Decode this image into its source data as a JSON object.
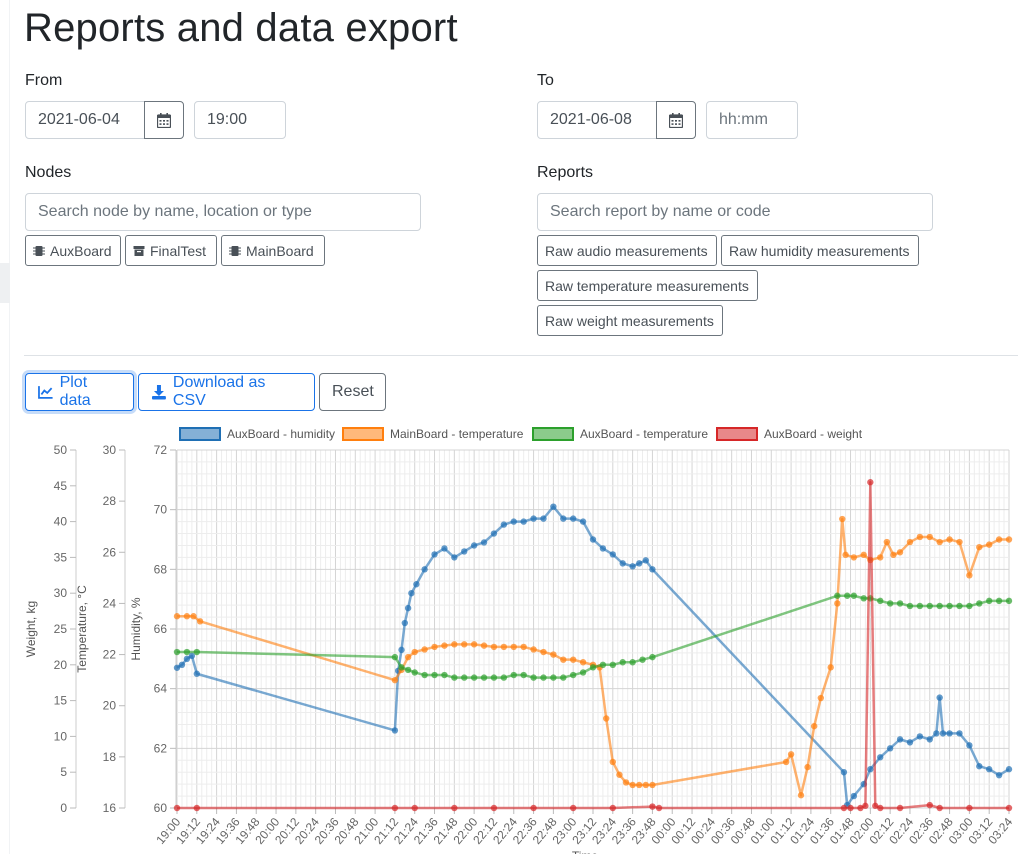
{
  "page": {
    "title": "Reports and data export"
  },
  "from": {
    "label": "From",
    "date": "2021-06-04",
    "time": "19:00"
  },
  "to": {
    "label": "To",
    "date": "2021-06-08",
    "time_placeholder": "hh:mm"
  },
  "nodes": {
    "label": "Nodes",
    "search_placeholder": "Search node by name, location or type",
    "chips": [
      {
        "label": "AuxBoard",
        "icon": "chip-icon"
      },
      {
        "label": "FinalTest",
        "icon": "archive-icon"
      },
      {
        "label": "MainBoard",
        "icon": "chip-icon"
      }
    ]
  },
  "reports": {
    "label": "Reports",
    "search_placeholder": "Search report by name or code",
    "chips": [
      "Raw audio measurements",
      "Raw humidity measurements",
      "Raw temperature measurements",
      "Raw weight measurements"
    ]
  },
  "actions": {
    "plot_label": "Plot data",
    "csv_label": "Download as CSV",
    "reset_label": "Reset"
  },
  "chart_data": {
    "type": "line",
    "xlabel": "Time",
    "x_ticks": [
      "19:00",
      "19:12",
      "19:24",
      "19:36",
      "19:48",
      "20:00",
      "20:12",
      "20:24",
      "20:36",
      "20:48",
      "21:00",
      "21:12",
      "21:24",
      "21:36",
      "21:48",
      "22:00",
      "22:12",
      "22:24",
      "22:36",
      "22:48",
      "23:00",
      "23:12",
      "23:24",
      "23:36",
      "23:48",
      "00:00",
      "00:12",
      "00:24",
      "00:36",
      "00:48",
      "01:00",
      "01:12",
      "01:24",
      "01:36",
      "01:48",
      "02:00",
      "02:12",
      "02:24",
      "02:36",
      "02:48",
      "03:00",
      "03:12",
      "03:24"
    ],
    "axes": [
      {
        "id": "weight",
        "label": "Weight, kg",
        "min": 0,
        "max": 50,
        "ticks": [
          0,
          5,
          10,
          15,
          20,
          25,
          30,
          35,
          40,
          45,
          50
        ]
      },
      {
        "id": "temperature",
        "label": "Temperature, °C",
        "min": 16,
        "max": 30,
        "ticks": [
          16,
          18,
          20,
          22,
          24,
          26,
          28,
          30
        ]
      },
      {
        "id": "humidity",
        "label": "Humidity, %",
        "min": 60,
        "max": 72,
        "ticks": [
          60,
          62,
          64,
          66,
          68,
          70,
          72
        ]
      }
    ],
    "grid": true,
    "legend_position": "top",
    "series": [
      {
        "name": "AuxBoard - humidity",
        "axis": "humidity",
        "color": "#1f6fb4",
        "points": [
          [
            "19:00",
            64.7
          ],
          [
            "19:03",
            64.8
          ],
          [
            "19:06",
            65.0
          ],
          [
            "19:09",
            65.1
          ],
          [
            "19:12",
            64.5
          ],
          [
            "21:12",
            62.6
          ],
          [
            "21:14",
            64.6
          ],
          [
            "21:16",
            65.3
          ],
          [
            "21:18",
            66.2
          ],
          [
            "21:20",
            66.7
          ],
          [
            "21:22",
            67.2
          ],
          [
            "21:25",
            67.5
          ],
          [
            "21:30",
            68.0
          ],
          [
            "21:36",
            68.5
          ],
          [
            "21:42",
            68.7
          ],
          [
            "21:48",
            68.4
          ],
          [
            "21:54",
            68.6
          ],
          [
            "22:00",
            68.8
          ],
          [
            "22:06",
            68.9
          ],
          [
            "22:12",
            69.2
          ],
          [
            "22:18",
            69.5
          ],
          [
            "22:24",
            69.6
          ],
          [
            "22:30",
            69.6
          ],
          [
            "22:36",
            69.7
          ],
          [
            "22:42",
            69.7
          ],
          [
            "22:48",
            70.1
          ],
          [
            "22:54",
            69.7
          ],
          [
            "23:00",
            69.7
          ],
          [
            "23:06",
            69.6
          ],
          [
            "23:12",
            69.0
          ],
          [
            "23:18",
            68.7
          ],
          [
            "23:24",
            68.5
          ],
          [
            "23:30",
            68.2
          ],
          [
            "23:36",
            68.1
          ],
          [
            "23:40",
            68.2
          ],
          [
            "23:44",
            68.3
          ],
          [
            "23:48",
            68.0
          ],
          [
            "01:44",
            61.2
          ],
          [
            "01:46",
            60.1
          ],
          [
            "01:50",
            60.4
          ],
          [
            "01:56",
            60.8
          ],
          [
            "02:00",
            61.3
          ],
          [
            "02:06",
            61.7
          ],
          [
            "02:12",
            62.0
          ],
          [
            "02:18",
            62.3
          ],
          [
            "02:24",
            62.2
          ],
          [
            "02:30",
            62.4
          ],
          [
            "02:36",
            62.3
          ],
          [
            "02:40",
            62.5
          ],
          [
            "02:42",
            63.7
          ],
          [
            "02:44",
            62.5
          ],
          [
            "02:48",
            62.5
          ],
          [
            "02:54",
            62.5
          ],
          [
            "03:00",
            62.1
          ],
          [
            "03:06",
            61.4
          ],
          [
            "03:12",
            61.3
          ],
          [
            "03:18",
            61.1
          ],
          [
            "03:24",
            61.3
          ]
        ]
      },
      {
        "name": "MainBoard - temperature",
        "axis": "temperature",
        "color": "#ff7f0e",
        "points": [
          [
            "19:00",
            23.5
          ],
          [
            "19:06",
            23.5
          ],
          [
            "19:10",
            23.5
          ],
          [
            "19:14",
            23.3
          ],
          [
            "21:12",
            21.0
          ],
          [
            "21:16",
            21.4
          ],
          [
            "21:20",
            21.9
          ],
          [
            "21:24",
            22.1
          ],
          [
            "21:30",
            22.2
          ],
          [
            "21:36",
            22.3
          ],
          [
            "21:42",
            22.35
          ],
          [
            "21:48",
            22.4
          ],
          [
            "21:54",
            22.4
          ],
          [
            "22:00",
            22.4
          ],
          [
            "22:06",
            22.35
          ],
          [
            "22:12",
            22.3
          ],
          [
            "22:18",
            22.3
          ],
          [
            "22:24",
            22.3
          ],
          [
            "22:30",
            22.3
          ],
          [
            "22:36",
            22.2
          ],
          [
            "22:42",
            22.1
          ],
          [
            "22:48",
            22.0
          ],
          [
            "22:54",
            21.8
          ],
          [
            "23:00",
            21.8
          ],
          [
            "23:06",
            21.7
          ],
          [
            "23:12",
            21.6
          ],
          [
            "23:16",
            21.5
          ],
          [
            "23:20",
            19.5
          ],
          [
            "23:24",
            17.8
          ],
          [
            "23:28",
            17.3
          ],
          [
            "23:32",
            17.0
          ],
          [
            "23:36",
            16.9
          ],
          [
            "23:40",
            16.9
          ],
          [
            "23:44",
            16.9
          ],
          [
            "23:48",
            16.9
          ],
          [
            "01:09",
            17.8
          ],
          [
            "01:12",
            18.1
          ],
          [
            "01:18",
            16.5
          ],
          [
            "01:22",
            17.6
          ],
          [
            "01:26",
            19.2
          ],
          [
            "01:30",
            20.3
          ],
          [
            "01:36",
            21.5
          ],
          [
            "01:40",
            24.0
          ],
          [
            "01:43",
            27.3
          ],
          [
            "01:45",
            25.9
          ],
          [
            "01:50",
            25.8
          ],
          [
            "01:56",
            25.9
          ],
          [
            "02:00",
            25.7
          ],
          [
            "02:06",
            25.8
          ],
          [
            "02:10",
            26.4
          ],
          [
            "02:14",
            25.9
          ],
          [
            "02:18",
            26.0
          ],
          [
            "02:24",
            26.4
          ],
          [
            "02:30",
            26.6
          ],
          [
            "02:36",
            26.6
          ],
          [
            "02:42",
            26.4
          ],
          [
            "02:48",
            26.5
          ],
          [
            "02:54",
            26.4
          ],
          [
            "03:00",
            25.1
          ],
          [
            "03:06",
            26.2
          ],
          [
            "03:12",
            26.3
          ],
          [
            "03:18",
            26.5
          ],
          [
            "03:24",
            26.5
          ]
        ]
      },
      {
        "name": "AuxBoard - temperature",
        "axis": "temperature",
        "color": "#2ca02c",
        "points": [
          [
            "19:00",
            22.1
          ],
          [
            "19:06",
            22.1
          ],
          [
            "19:12",
            22.1
          ],
          [
            "21:12",
            21.9
          ],
          [
            "21:16",
            21.5
          ],
          [
            "21:20",
            21.4
          ],
          [
            "21:24",
            21.3
          ],
          [
            "21:30",
            21.2
          ],
          [
            "21:36",
            21.2
          ],
          [
            "21:42",
            21.2
          ],
          [
            "21:48",
            21.1
          ],
          [
            "21:54",
            21.1
          ],
          [
            "22:00",
            21.1
          ],
          [
            "22:06",
            21.1
          ],
          [
            "22:12",
            21.1
          ],
          [
            "22:18",
            21.1
          ],
          [
            "22:24",
            21.2
          ],
          [
            "22:30",
            21.2
          ],
          [
            "22:36",
            21.1
          ],
          [
            "22:42",
            21.1
          ],
          [
            "22:48",
            21.1
          ],
          [
            "22:54",
            21.1
          ],
          [
            "23:00",
            21.2
          ],
          [
            "23:06",
            21.3
          ],
          [
            "23:12",
            21.5
          ],
          [
            "23:18",
            21.6
          ],
          [
            "23:24",
            21.6
          ],
          [
            "23:30",
            21.7
          ],
          [
            "23:36",
            21.7
          ],
          [
            "23:42",
            21.8
          ],
          [
            "23:48",
            21.9
          ],
          [
            "01:40",
            24.3
          ],
          [
            "01:46",
            24.3
          ],
          [
            "01:50",
            24.3
          ],
          [
            "01:56",
            24.2
          ],
          [
            "02:00",
            24.2
          ],
          [
            "02:06",
            24.1
          ],
          [
            "02:12",
            24.0
          ],
          [
            "02:18",
            24.0
          ],
          [
            "02:24",
            23.9
          ],
          [
            "02:30",
            23.9
          ],
          [
            "02:36",
            23.9
          ],
          [
            "02:42",
            23.9
          ],
          [
            "02:48",
            23.9
          ],
          [
            "02:54",
            23.9
          ],
          [
            "03:00",
            23.9
          ],
          [
            "03:06",
            24.0
          ],
          [
            "03:12",
            24.1
          ],
          [
            "03:18",
            24.1
          ],
          [
            "03:24",
            24.1
          ]
        ]
      },
      {
        "name": "AuxBoard - weight",
        "axis": "weight",
        "color": "#d62728",
        "points": [
          [
            "19:00",
            0.0
          ],
          [
            "19:12",
            0.0
          ],
          [
            "21:12",
            0.0
          ],
          [
            "21:24",
            0.0
          ],
          [
            "21:48",
            0.0
          ],
          [
            "22:12",
            0.0
          ],
          [
            "22:36",
            0.0
          ],
          [
            "23:00",
            0.0
          ],
          [
            "23:24",
            0.0
          ],
          [
            "23:48",
            0.2
          ],
          [
            "23:52",
            0.0
          ],
          [
            "01:44",
            0.0
          ],
          [
            "01:48",
            0.0
          ],
          [
            "01:54",
            0.0
          ],
          [
            "01:57",
            0.3
          ],
          [
            "02:00",
            45.5
          ],
          [
            "02:03",
            0.3
          ],
          [
            "02:06",
            0.0
          ],
          [
            "02:18",
            0.0
          ],
          [
            "02:36",
            0.4
          ],
          [
            "02:42",
            0.0
          ],
          [
            "03:00",
            0.0
          ],
          [
            "03:24",
            0.0
          ]
        ]
      }
    ]
  }
}
